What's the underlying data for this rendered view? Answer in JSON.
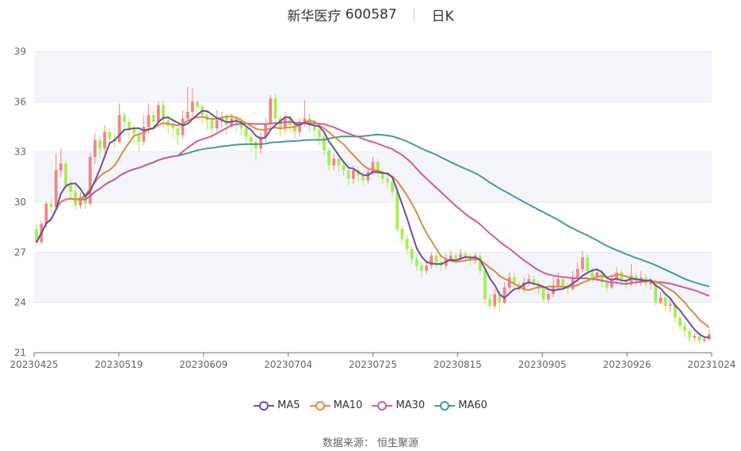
{
  "title": {
    "name": "新华医疗",
    "code": "600587",
    "period": "日K"
  },
  "source": "数据来源： 恒生聚源",
  "colors": {
    "up": "#f28585",
    "down": "#a6ee4f",
    "band": "#f4f5fa",
    "grid": "#e6e7f2"
  },
  "chart_data": {
    "type": "candlestick",
    "x_ticks": [
      "20230425",
      "20230519",
      "20230609",
      "20230704",
      "20230725",
      "20230815",
      "20230905",
      "20230926",
      "20231024"
    ],
    "ylim": [
      21,
      39
    ],
    "y_ticks": [
      21,
      24,
      27,
      30,
      33,
      36,
      39
    ],
    "candles": [
      [
        28.4,
        27.6,
        28.7,
        27.4
      ],
      [
        27.6,
        28.7,
        28.9,
        27.5
      ],
      [
        28.7,
        29.9,
        30.0,
        28.5
      ],
      [
        29.9,
        29.7,
        30.2,
        29.4
      ],
      [
        29.7,
        31.9,
        32.9,
        29.6
      ],
      [
        31.9,
        32.3,
        33.2,
        31.5
      ],
      [
        32.3,
        31.0,
        32.5,
        30.8
      ],
      [
        31.0,
        30.6,
        31.4,
        30.1
      ],
      [
        30.6,
        29.8,
        31.1,
        29.5
      ],
      [
        29.8,
        30.3,
        30.6,
        29.6
      ],
      [
        30.3,
        29.9,
        30.5,
        29.6
      ],
      [
        29.9,
        32.7,
        32.9,
        29.8
      ],
      [
        32.7,
        33.7,
        34.1,
        32.3
      ],
      [
        33.7,
        33.2,
        34.0,
        32.6
      ],
      [
        33.2,
        34.2,
        34.6,
        32.9
      ],
      [
        34.2,
        33.8,
        34.4,
        33.4
      ],
      [
        33.8,
        33.6,
        34.1,
        33.2
      ],
      [
        33.6,
        35.2,
        35.9,
        33.5
      ],
      [
        35.2,
        34.8,
        35.4,
        34.0
      ],
      [
        34.8,
        34.4,
        35.0,
        33.8
      ],
      [
        34.4,
        34.1,
        34.6,
        33.5
      ],
      [
        34.1,
        33.6,
        34.3,
        33.0
      ],
      [
        33.6,
        34.5,
        35.2,
        33.4
      ],
      [
        34.5,
        35.2,
        35.9,
        34.1
      ],
      [
        35.2,
        34.8,
        35.5,
        34.2
      ],
      [
        34.8,
        35.8,
        36.0,
        34.6
      ],
      [
        35.8,
        34.9,
        36.1,
        34.5
      ],
      [
        34.9,
        34.6,
        35.2,
        34.1
      ],
      [
        34.6,
        34.4,
        34.9,
        33.8
      ],
      [
        34.4,
        34.0,
        34.6,
        33.4
      ],
      [
        34.0,
        35.0,
        35.5,
        33.8
      ],
      [
        35.0,
        35.4,
        36.9,
        34.8
      ],
      [
        35.4,
        36.0,
        36.8,
        35.1
      ],
      [
        36.0,
        35.7,
        36.1,
        35.0
      ],
      [
        35.7,
        35.2,
        35.9,
        34.7
      ],
      [
        35.2,
        34.9,
        35.4,
        34.3
      ],
      [
        34.9,
        34.4,
        35.1,
        33.8
      ],
      [
        34.4,
        34.9,
        35.5,
        34.2
      ],
      [
        34.9,
        35.1,
        35.4,
        34.5
      ],
      [
        35.1,
        34.6,
        35.3,
        34.0
      ],
      [
        34.6,
        35.0,
        35.3,
        34.4
      ],
      [
        35.0,
        34.7,
        35.2,
        34.2
      ],
      [
        34.7,
        34.4,
        35.1,
        34.0
      ],
      [
        34.4,
        33.9,
        34.6,
        33.3
      ],
      [
        33.9,
        33.6,
        34.1,
        33.0
      ],
      [
        33.6,
        33.2,
        33.8,
        32.5
      ],
      [
        33.2,
        33.9,
        34.2,
        32.9
      ],
      [
        33.9,
        34.7,
        35.0,
        33.6
      ],
      [
        34.7,
        36.2,
        36.4,
        34.5
      ],
      [
        36.2,
        35.0,
        36.5,
        34.8
      ],
      [
        35.0,
        34.4,
        35.2,
        33.9
      ],
      [
        34.4,
        35.1,
        35.4,
        34.1
      ],
      [
        35.1,
        34.6,
        35.3,
        34.2
      ],
      [
        34.6,
        34.2,
        34.9,
        33.8
      ],
      [
        34.2,
        34.8,
        35.0,
        33.9
      ],
      [
        34.8,
        35.0,
        36.1,
        34.5
      ],
      [
        35.0,
        34.6,
        35.3,
        34.2
      ],
      [
        34.6,
        34.3,
        34.8,
        33.9
      ],
      [
        34.3,
        33.9,
        34.5,
        33.4
      ],
      [
        33.9,
        33.1,
        34.1,
        32.8
      ],
      [
        33.1,
        32.2,
        33.3,
        31.9
      ],
      [
        32.2,
        32.6,
        32.9,
        31.9
      ],
      [
        32.6,
        32.2,
        32.8,
        31.8
      ],
      [
        32.2,
        31.9,
        32.5,
        31.6
      ],
      [
        31.9,
        31.4,
        32.1,
        31.0
      ],
      [
        31.4,
        31.9,
        32.2,
        31.1
      ],
      [
        31.9,
        31.6,
        32.1,
        31.2
      ],
      [
        31.6,
        31.3,
        31.8,
        31.0
      ],
      [
        31.3,
        31.8,
        32.1,
        31.1
      ],
      [
        31.8,
        32.4,
        32.7,
        31.6
      ],
      [
        32.4,
        31.8,
        32.6,
        31.5
      ],
      [
        31.8,
        31.4,
        32.0,
        31.1
      ],
      [
        31.4,
        31.2,
        31.6,
        30.9
      ],
      [
        31.2,
        30.6,
        31.4,
        30.4
      ],
      [
        30.6,
        28.4,
        30.8,
        28.2
      ],
      [
        28.4,
        27.8,
        28.6,
        27.5
      ],
      [
        27.8,
        27.2,
        28.0,
        26.9
      ],
      [
        27.2,
        26.6,
        27.4,
        26.3
      ],
      [
        26.6,
        26.2,
        26.9,
        25.9
      ],
      [
        26.2,
        25.9,
        26.4,
        25.5
      ],
      [
        25.9,
        26.2,
        26.5,
        25.7
      ],
      [
        26.2,
        26.8,
        27.0,
        26.0
      ],
      [
        26.8,
        26.4,
        27.0,
        26.1
      ],
      [
        26.4,
        26.2,
        26.6,
        25.9
      ],
      [
        26.2,
        26.6,
        26.9,
        26.0
      ],
      [
        26.6,
        26.8,
        27.1,
        26.4
      ],
      [
        26.8,
        26.6,
        27.0,
        26.3
      ],
      [
        26.6,
        26.9,
        27.2,
        26.5
      ],
      [
        26.9,
        26.7,
        27.1,
        26.4
      ],
      [
        26.7,
        26.5,
        26.9,
        26.2
      ],
      [
        26.5,
        26.8,
        27.0,
        26.3
      ],
      [
        26.8,
        25.9,
        27.0,
        25.7
      ],
      [
        25.9,
        24.2,
        26.0,
        23.9
      ],
      [
        24.2,
        23.8,
        24.5,
        23.6
      ],
      [
        23.8,
        24.5,
        24.8,
        23.6
      ],
      [
        24.5,
        24.0,
        24.7,
        23.5
      ],
      [
        24.0,
        24.9,
        25.2,
        23.9
      ],
      [
        24.9,
        25.5,
        25.8,
        24.7
      ],
      [
        25.5,
        25.1,
        25.8,
        24.9
      ],
      [
        25.1,
        24.8,
        25.3,
        24.6
      ],
      [
        24.8,
        25.2,
        25.5,
        24.6
      ],
      [
        25.2,
        25.4,
        25.7,
        25.0
      ],
      [
        25.4,
        25.1,
        25.6,
        24.9
      ],
      [
        25.1,
        24.8,
        25.3,
        24.5
      ],
      [
        24.8,
        24.2,
        25.0,
        24.0
      ],
      [
        24.2,
        24.5,
        24.8,
        24.0
      ],
      [
        24.5,
        25.0,
        25.5,
        24.3
      ],
      [
        25.0,
        25.4,
        25.8,
        24.8
      ],
      [
        25.4,
        25.0,
        25.6,
        24.7
      ],
      [
        25.0,
        24.8,
        25.2,
        24.5
      ],
      [
        24.8,
        25.5,
        25.9,
        24.7
      ],
      [
        25.5,
        26.0,
        26.4,
        25.2
      ],
      [
        26.0,
        26.7,
        27.1,
        25.8
      ],
      [
        26.7,
        25.9,
        26.9,
        25.6
      ],
      [
        25.9,
        25.5,
        26.1,
        25.2
      ],
      [
        25.5,
        25.8,
        26.0,
        25.3
      ],
      [
        25.8,
        25.2,
        26.0,
        24.9
      ],
      [
        25.2,
        24.9,
        25.4,
        24.6
      ],
      [
        24.9,
        25.4,
        25.7,
        24.8
      ],
      [
        25.4,
        25.8,
        26.1,
        25.1
      ],
      [
        25.8,
        25.3,
        26.0,
        25.0
      ],
      [
        25.3,
        25.1,
        25.5,
        24.8
      ],
      [
        25.1,
        25.6,
        26.3,
        25.0
      ],
      [
        25.6,
        25.2,
        25.8,
        25.0
      ],
      [
        25.2,
        25.5,
        25.9,
        25.0
      ],
      [
        25.5,
        25.1,
        25.7,
        24.9
      ],
      [
        25.1,
        25.3,
        25.5,
        24.8
      ],
      [
        25.3,
        24.0,
        25.4,
        23.8
      ],
      [
        24.0,
        24.3,
        24.6,
        23.9
      ],
      [
        24.3,
        23.8,
        24.5,
        23.5
      ],
      [
        23.8,
        23.9,
        24.2,
        23.4
      ],
      [
        23.9,
        23.1,
        24.0,
        22.8
      ],
      [
        23.1,
        22.6,
        23.4,
        22.3
      ],
      [
        22.6,
        22.3,
        22.9,
        21.9
      ],
      [
        22.3,
        21.9,
        22.5,
        21.6
      ],
      [
        21.9,
        22.0,
        22.2,
        21.7
      ],
      [
        22.0,
        21.7,
        22.2,
        21.5
      ],
      [
        21.7,
        21.8,
        22.0,
        21.6
      ],
      [
        21.8,
        22.1,
        22.4,
        21.7
      ]
    ],
    "series": [
      {
        "name": "MA5",
        "color": "#6c4d9e",
        "values": []
      },
      {
        "name": "MA10",
        "color": "#e08a3c",
        "values": []
      },
      {
        "name": "MA30",
        "color": "#d15a9e",
        "values": []
      },
      {
        "name": "MA60",
        "color": "#3f9c9c",
        "values": []
      }
    ],
    "legend": [
      "MA5",
      "MA10",
      "MA30",
      "MA60"
    ],
    "grid": true,
    "legend_position": "bottom"
  }
}
